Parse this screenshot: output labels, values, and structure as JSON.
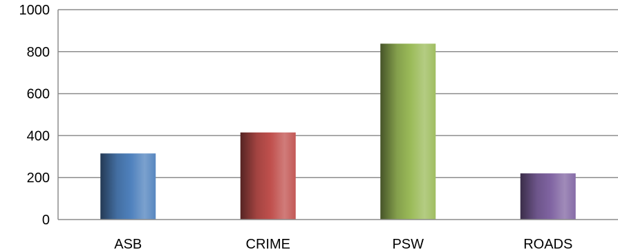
{
  "chart_data": {
    "type": "bar",
    "categories": [
      "ASB",
      "CRIME",
      "PSW",
      "ROADS"
    ],
    "values": [
      315,
      415,
      838,
      220
    ],
    "title": "",
    "xlabel": "",
    "ylabel": "",
    "ylim": [
      0,
      1000
    ],
    "yticks": [
      0,
      200,
      400,
      600,
      800,
      1000
    ],
    "ytick_labels": [
      "0",
      "200",
      "400",
      "600",
      "800",
      "1000"
    ],
    "grid": true,
    "legend": "none",
    "colors": [
      "#4f81bd",
      "#c0504d",
      "#9bbb59",
      "#8064a2"
    ]
  }
}
